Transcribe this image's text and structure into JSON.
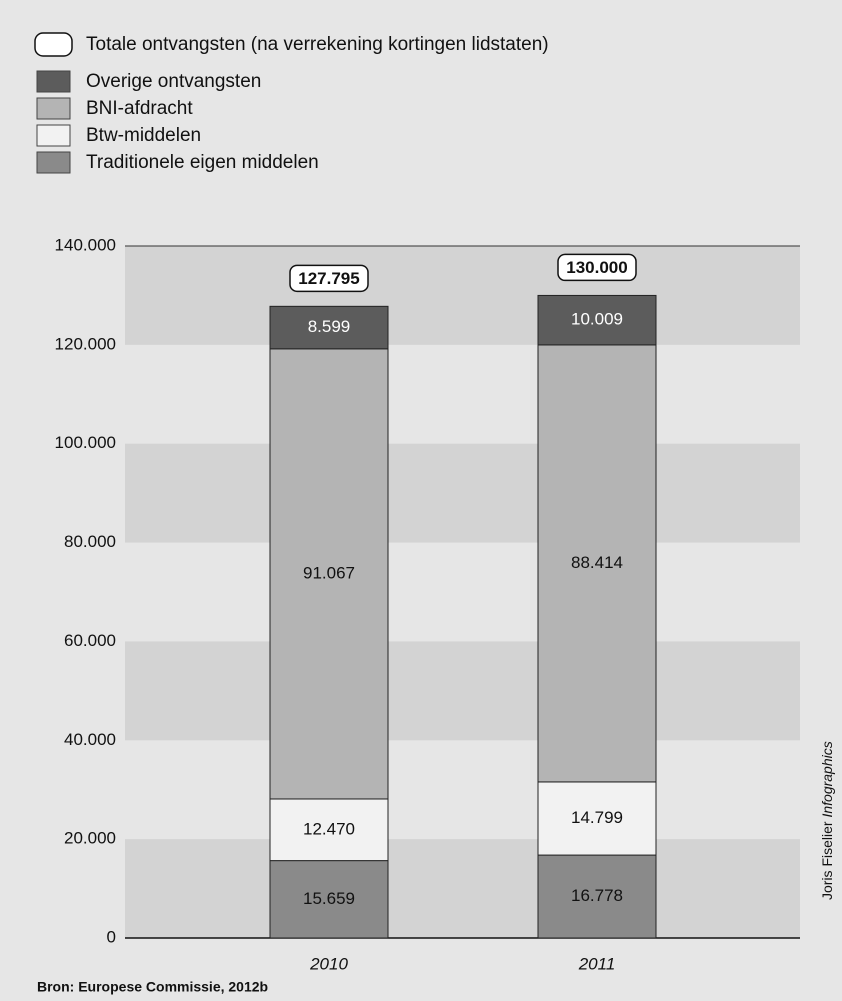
{
  "chart_data": {
    "type": "stacked_bar",
    "categories": [
      "2010",
      "2011"
    ],
    "series": [
      {
        "name": "Traditionele eigen middelen",
        "color": "#8a8a8a",
        "values": [
          15659,
          16778
        ],
        "value_labels": [
          "15.659",
          "16.778"
        ]
      },
      {
        "name": "Btw-middelen",
        "color": "#f2f2f2",
        "values": [
          12470,
          14799
        ],
        "value_labels": [
          "12.470",
          "14.799"
        ]
      },
      {
        "name": "BNI-afdracht",
        "color": "#b4b4b4",
        "values": [
          91067,
          88414
        ],
        "value_labels": [
          "91.067",
          "88.414"
        ]
      },
      {
        "name": "Overige ontvangsten",
        "color": "#5c5c5c",
        "values": [
          8599,
          10009
        ],
        "value_labels": [
          "8.599",
          "10.009"
        ]
      }
    ],
    "totals": {
      "name": "Totale ontvangsten (na verrekening kortingen lidstaten)",
      "values": [
        127795,
        130000
      ],
      "value_labels": [
        "127.795",
        "130.000"
      ]
    },
    "ylim": [
      0,
      140000
    ],
    "yticks": [
      0,
      {
        "value": 20000,
        "label": "20.000"
      },
      {
        "value": 40000,
        "label": "40.000"
      },
      {
        "value": 60000,
        "label": "60.000"
      },
      {
        "value": 80000,
        "label": "80.000"
      },
      {
        "value": 100000,
        "label": "100.000"
      },
      {
        "value": 120000,
        "label": "120.000"
      },
      {
        "value": 140000,
        "label": "140.000"
      }
    ],
    "grid": true,
    "source": "Bron: Europese Commissie, 2012b",
    "credit": {
      "name": "Joris Fiselier",
      "agency": "Infographics"
    }
  }
}
